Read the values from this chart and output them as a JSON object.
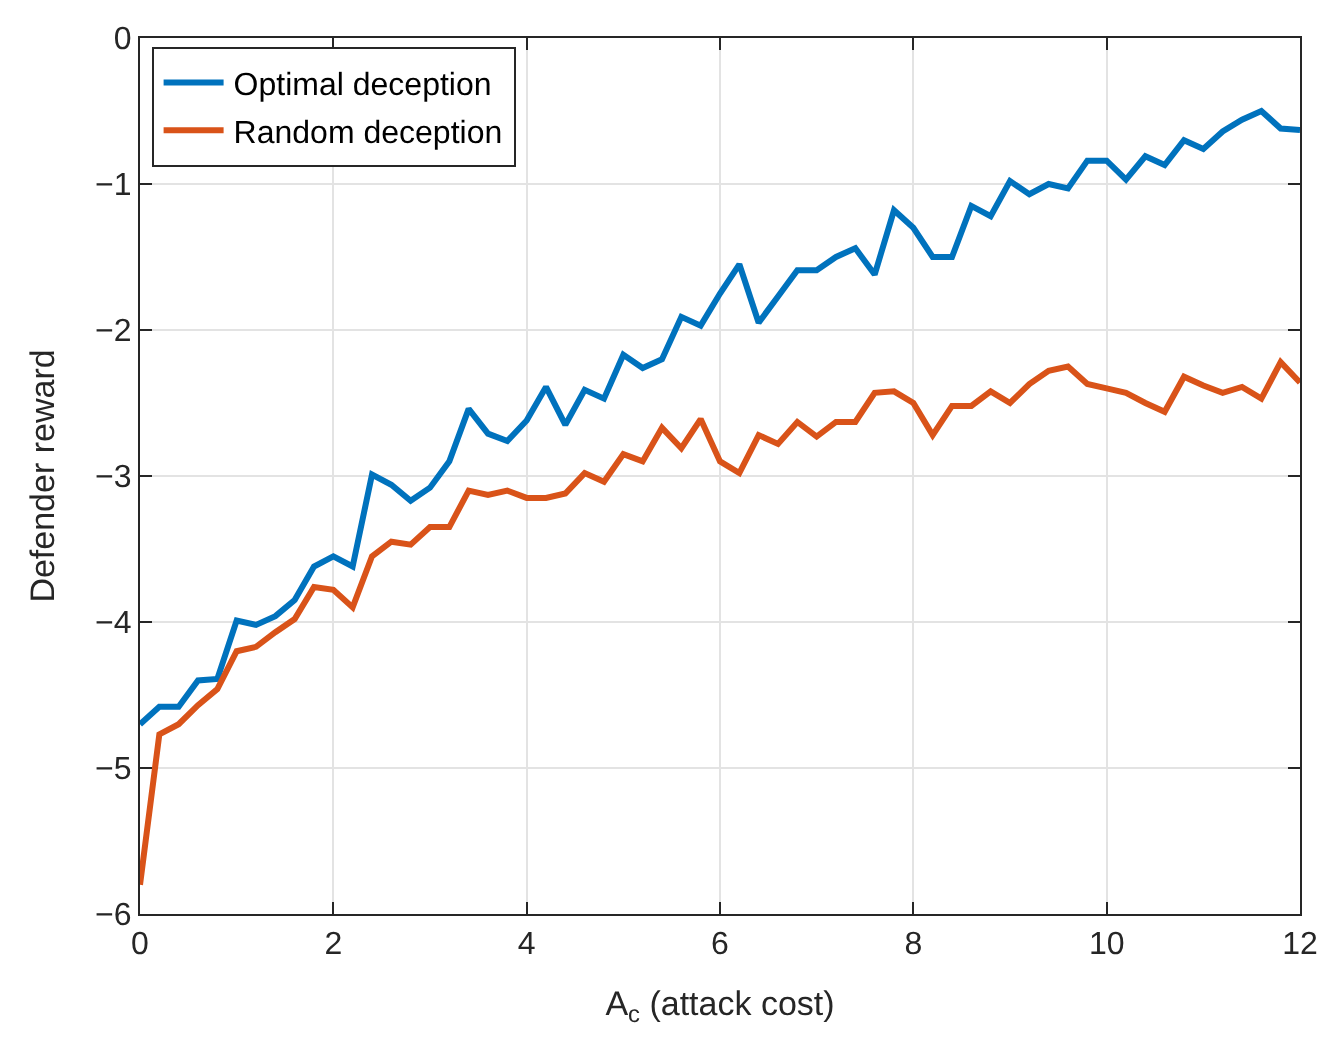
{
  "chart_data": {
    "type": "line",
    "xlabel": "A$_{c}$ (attack cost)",
    "ylabel": "Defender reward",
    "x": [
      0,
      0.2,
      0.4,
      0.6,
      0.8,
      1,
      1.2,
      1.4,
      1.6,
      1.8,
      2,
      2.2,
      2.4,
      2.6,
      2.8,
      3,
      3.2,
      3.4,
      3.6,
      3.8,
      4,
      4.2,
      4.4,
      4.6,
      4.8,
      5,
      5.2,
      5.4,
      5.6,
      5.8,
      6,
      6.2,
      6.4,
      6.6,
      6.8,
      7,
      7.2,
      7.4,
      7.6,
      7.8,
      8,
      8.2,
      8.4,
      8.6,
      8.8,
      9,
      9.2,
      9.4,
      9.6,
      9.8,
      10,
      10.2,
      10.4,
      10.6,
      10.8,
      11,
      11.2,
      11.4,
      11.6,
      11.8,
      12
    ],
    "series": [
      {
        "name": "Optimal deception",
        "color": "#0072bd",
        "values": [
          -4.7,
          -4.58,
          -4.58,
          -4.4,
          -4.39,
          -3.99,
          -4.02,
          -3.96,
          -3.85,
          -3.62,
          -3.55,
          -3.62,
          -2.99,
          -3.06,
          -3.17,
          -3.08,
          -2.9,
          -2.54,
          -2.71,
          -2.76,
          -2.62,
          -2.39,
          -2.65,
          -2.41,
          -2.47,
          -2.17,
          -2.26,
          -2.2,
          -1.91,
          -1.97,
          -1.75,
          -1.55,
          -1.95,
          -1.77,
          -1.59,
          -1.59,
          -1.5,
          -1.44,
          -1.62,
          -1.18,
          -1.3,
          -1.5,
          -1.5,
          -1.15,
          -1.22,
          -0.98,
          -1.07,
          -1.0,
          -1.03,
          -0.84,
          -0.84,
          -0.97,
          -0.81,
          -0.87,
          -0.7,
          -0.76,
          -0.64,
          -0.56,
          -0.5,
          -0.62,
          -0.63
        ]
      },
      {
        "name": "Random deception",
        "color": "#d95319",
        "values": [
          -5.8,
          -4.77,
          -4.7,
          -4.57,
          -4.46,
          -4.2,
          -4.17,
          -4.07,
          -3.98,
          -3.76,
          -3.78,
          -3.9,
          -3.55,
          -3.45,
          -3.47,
          -3.35,
          -3.35,
          -3.1,
          -3.13,
          -3.1,
          -3.15,
          -3.15,
          -3.12,
          -2.98,
          -3.04,
          -2.85,
          -2.9,
          -2.67,
          -2.81,
          -2.61,
          -2.9,
          -2.98,
          -2.72,
          -2.78,
          -2.63,
          -2.73,
          -2.63,
          -2.63,
          -2.43,
          -2.42,
          -2.5,
          -2.72,
          -2.52,
          -2.52,
          -2.42,
          -2.5,
          -2.37,
          -2.28,
          -2.25,
          -2.37,
          -2.4,
          -2.43,
          -2.5,
          -2.56,
          -2.32,
          -2.38,
          -2.43,
          -2.39,
          -2.47,
          -2.22,
          -2.36
        ]
      }
    ],
    "xlim": [
      0,
      12
    ],
    "xticks": [
      0,
      2,
      4,
      6,
      8,
      10,
      12
    ],
    "ylim": [
      -6,
      0
    ],
    "yticks": [
      -6,
      -5,
      -4,
      -3,
      -2,
      -1,
      0
    ],
    "grid": true,
    "legend": "top left",
    "line_style": "solid",
    "marker": "none"
  }
}
